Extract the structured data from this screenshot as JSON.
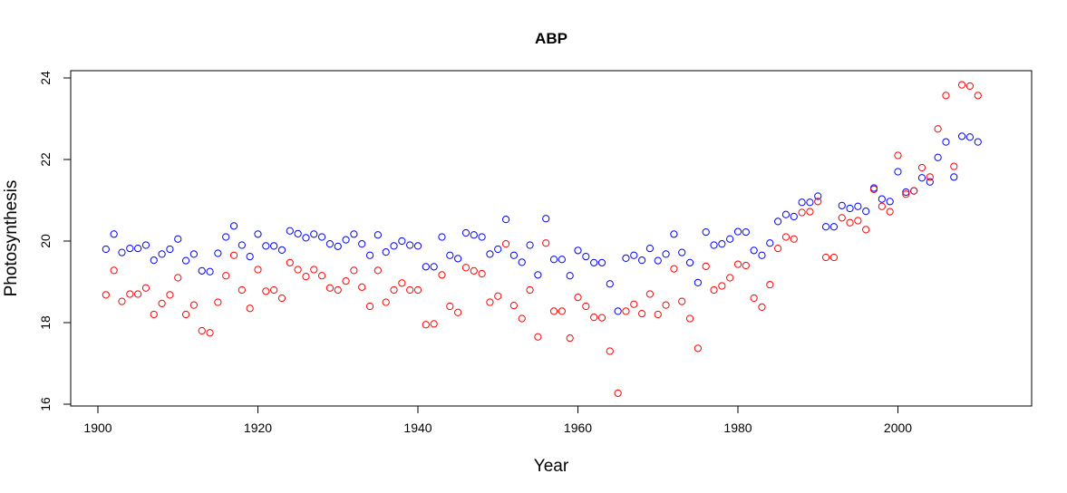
{
  "chart_data": {
    "type": "scatter",
    "title": "ABP",
    "xlabel": "Year",
    "ylabel": "Photosynthesis",
    "xlim": [
      1900,
      2015
    ],
    "ylim": [
      16,
      24
    ],
    "x_ticks": [
      "1900",
      "1920",
      "1940",
      "1960",
      "1980",
      "2000"
    ],
    "y_ticks": [
      "16",
      "18",
      "20",
      "22",
      "24"
    ],
    "grid": false,
    "legend": "none",
    "marker": "open-circle",
    "x": [
      1901,
      1902,
      1903,
      1904,
      1905,
      1906,
      1907,
      1908,
      1909,
      1910,
      1911,
      1912,
      1913,
      1914,
      1915,
      1916,
      1917,
      1918,
      1919,
      1920,
      1921,
      1922,
      1923,
      1924,
      1925,
      1926,
      1927,
      1928,
      1929,
      1930,
      1931,
      1932,
      1933,
      1934,
      1935,
      1936,
      1937,
      1938,
      1939,
      1940,
      1941,
      1942,
      1943,
      1944,
      1945,
      1946,
      1947,
      1948,
      1949,
      1950,
      1951,
      1952,
      1953,
      1954,
      1955,
      1956,
      1957,
      1958,
      1959,
      1960,
      1961,
      1962,
      1963,
      1964,
      1965,
      1966,
      1967,
      1968,
      1969,
      1970,
      1971,
      1972,
      1973,
      1974,
      1975,
      1976,
      1977,
      1978,
      1979,
      1980,
      1981,
      1982,
      1983,
      1984,
      1985,
      1986,
      1987,
      1988,
      1989,
      1990,
      1991,
      1992,
      1993,
      1994,
      1995,
      1996,
      1997,
      1998,
      1999,
      2000,
      2001,
      2002,
      2003,
      2004,
      2005,
      2006,
      2007,
      2008,
      2009,
      2010
    ],
    "series": [
      {
        "color": "#0000ff",
        "values": [
          19.8,
          20.17,
          19.72,
          19.82,
          19.82,
          19.9,
          19.53,
          19.68,
          19.8,
          20.05,
          19.52,
          19.68,
          19.27,
          19.25,
          19.7,
          20.1,
          20.37,
          19.9,
          19.62,
          20.17,
          19.88,
          19.88,
          19.78,
          20.25,
          20.18,
          20.08,
          20.17,
          20.1,
          19.93,
          19.87,
          20.03,
          20.17,
          19.93,
          19.65,
          20.15,
          19.73,
          19.88,
          20.0,
          19.9,
          19.88,
          19.37,
          19.37,
          20.1,
          19.65,
          19.57,
          20.2,
          20.15,
          20.1,
          19.68,
          19.8,
          20.53,
          19.65,
          19.48,
          19.9,
          19.17,
          20.55,
          19.55,
          19.55,
          19.15,
          19.77,
          19.62,
          19.47,
          19.47,
          18.95,
          18.28,
          19.58,
          19.65,
          19.53,
          19.82,
          19.52,
          19.68,
          20.17,
          19.72,
          19.47,
          18.98,
          20.22,
          19.9,
          19.93,
          20.05,
          20.23,
          20.22,
          19.77,
          19.65,
          19.95,
          20.48,
          20.65,
          20.6,
          20.95,
          20.95,
          21.1,
          20.35,
          20.35,
          20.87,
          20.8,
          20.85,
          20.73,
          21.3,
          21.03,
          20.97,
          21.7,
          21.2,
          21.23,
          21.55,
          21.45,
          22.05,
          22.43,
          21.57,
          22.57,
          22.55,
          22.43
        ]
      },
      {
        "color": "#ff0000",
        "values": [
          18.68,
          19.28,
          18.52,
          18.7,
          18.7,
          18.85,
          18.2,
          18.47,
          18.68,
          19.1,
          18.2,
          18.43,
          17.8,
          17.75,
          18.5,
          19.15,
          19.65,
          18.8,
          18.35,
          19.3,
          18.77,
          18.8,
          18.6,
          19.47,
          19.3,
          19.13,
          19.3,
          19.15,
          18.85,
          18.8,
          19.02,
          19.28,
          18.87,
          18.4,
          19.28,
          18.5,
          18.8,
          18.97,
          18.8,
          18.8,
          17.95,
          17.97,
          19.17,
          18.4,
          18.25,
          19.35,
          19.27,
          19.2,
          18.5,
          18.65,
          19.93,
          18.42,
          18.1,
          18.8,
          17.65,
          19.95,
          18.28,
          18.28,
          17.62,
          18.62,
          18.4,
          18.13,
          18.12,
          17.3,
          16.27,
          18.28,
          18.45,
          18.22,
          18.7,
          18.2,
          18.43,
          19.32,
          18.52,
          18.1,
          17.37,
          19.38,
          18.8,
          18.9,
          19.1,
          19.43,
          19.4,
          18.6,
          18.38,
          18.93,
          19.82,
          20.1,
          20.05,
          20.7,
          20.72,
          20.97,
          19.6,
          19.6,
          20.57,
          20.45,
          20.5,
          20.28,
          21.27,
          20.85,
          20.72,
          22.1,
          21.15,
          21.23,
          21.8,
          21.57,
          22.75,
          23.57,
          21.83,
          23.83,
          23.8,
          23.57
        ]
      }
    ]
  }
}
